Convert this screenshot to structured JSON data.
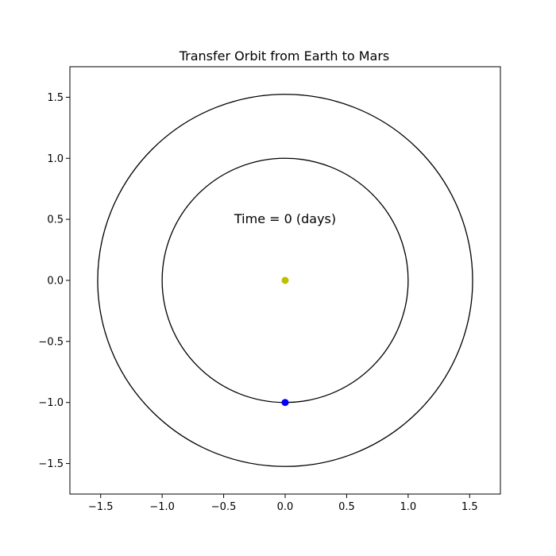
{
  "chart_data": {
    "type": "scatter",
    "title": "Transfer Orbit from Earth to Mars",
    "xlabel": "",
    "ylabel": "",
    "xlim": [
      -1.75,
      1.75
    ],
    "ylim": [
      -1.75,
      1.75
    ],
    "grid": false,
    "x_ticks": [
      -1.5,
      -1.0,
      -0.5,
      0.0,
      0.5,
      1.0,
      1.5
    ],
    "y_ticks": [
      -1.5,
      -1.0,
      -0.5,
      0.0,
      0.5,
      1.0,
      1.5
    ],
    "x_tick_labels": [
      "−1.5",
      "−1.0",
      "−0.5",
      "0.0",
      "0.5",
      "1.0",
      "1.5"
    ],
    "y_tick_labels": [
      "−1.5",
      "−1.0",
      "−0.5",
      "0.0",
      "0.5",
      "1.0",
      "1.5"
    ],
    "orbits": [
      {
        "radius": 1.0,
        "color": "#000000"
      },
      {
        "radius": 1.524,
        "color": "#000000"
      }
    ],
    "points": [
      {
        "x": 0.0,
        "y": 0.0,
        "color": "#bfbf00"
      },
      {
        "x": 0.0,
        "y": -1.0,
        "color": "#0000ff"
      }
    ],
    "annotation": {
      "text": "Time = 0 (days)",
      "x": 0.0,
      "y": 0.5
    }
  }
}
